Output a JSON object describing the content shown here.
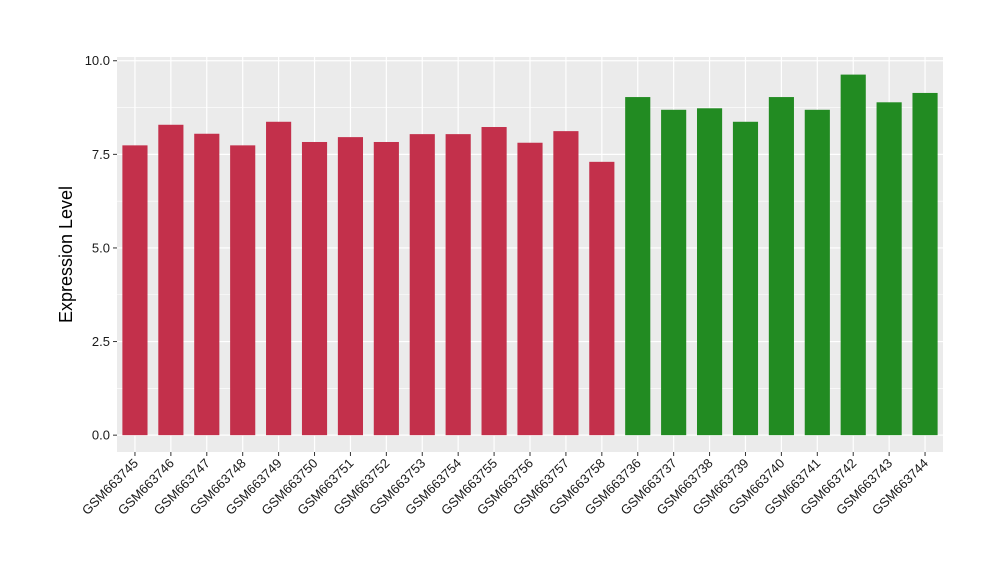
{
  "chart_data": {
    "type": "bar",
    "title": "",
    "xlabel": "",
    "ylabel": "Expression Level",
    "ylim": [
      -0.45,
      10.1
    ],
    "yticks": [
      0.0,
      2.5,
      5.0,
      7.5,
      10.0
    ],
    "ytick_labels": [
      "0.0",
      "2.5",
      "5.0",
      "7.5",
      "10.0"
    ],
    "grid": true,
    "legend": "none",
    "categories": [
      "GSM663745",
      "GSM663746",
      "GSM663747",
      "GSM663748",
      "GSM663749",
      "GSM663750",
      "GSM663751",
      "GSM663752",
      "GSM663753",
      "GSM663754",
      "GSM663755",
      "GSM663756",
      "GSM663757",
      "GSM663758",
      "GSM663736",
      "GSM663737",
      "GSM663738",
      "GSM663739",
      "GSM663740",
      "GSM663741",
      "GSM663742",
      "GSM663743",
      "GSM663744"
    ],
    "values": [
      7.74,
      8.29,
      8.05,
      7.74,
      8.37,
      7.83,
      7.96,
      7.83,
      8.04,
      8.04,
      8.23,
      7.81,
      8.12,
      7.3,
      9.03,
      8.69,
      8.73,
      8.37,
      9.03,
      8.69,
      9.63,
      8.89,
      9.14
    ],
    "bar_colors": [
      "#c3304b",
      "#c3304b",
      "#c3304b",
      "#c3304b",
      "#c3304b",
      "#c3304b",
      "#c3304b",
      "#c3304b",
      "#c3304b",
      "#c3304b",
      "#c3304b",
      "#c3304b",
      "#c3304b",
      "#c3304b",
      "#228b22",
      "#228b22",
      "#228b22",
      "#228b22",
      "#228b22",
      "#228b22",
      "#228b22",
      "#228b22",
      "#228b22"
    ],
    "panel_background": "#ebebeb",
    "grid_color": "#ffffff"
  }
}
